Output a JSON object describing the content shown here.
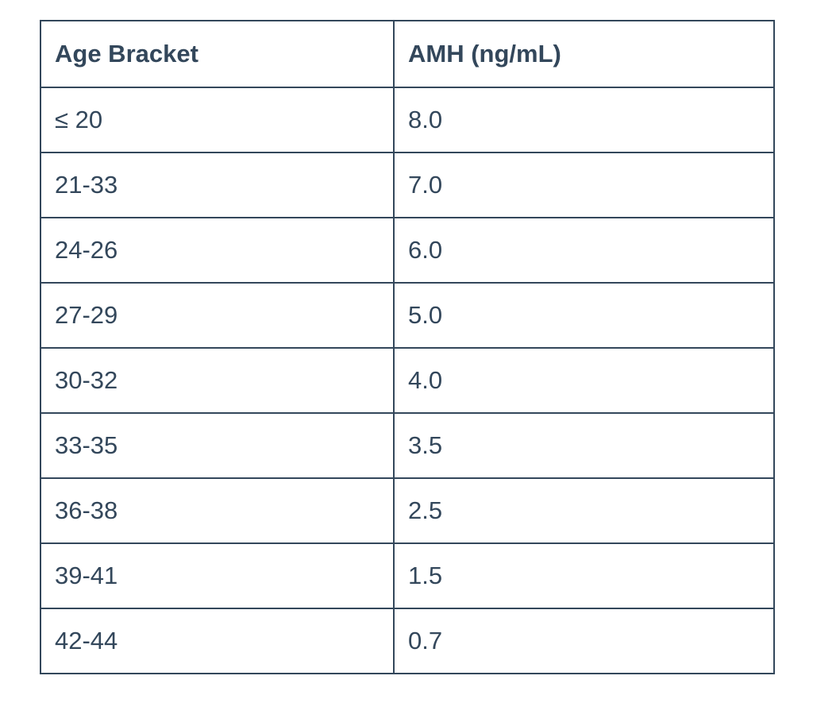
{
  "table": {
    "headers": [
      "Age Bracket",
      "AMH (ng/mL)"
    ],
    "rows": [
      [
        "≤ 20",
        "8.0"
      ],
      [
        "21-33",
        "7.0"
      ],
      [
        "24-26",
        "6.0"
      ],
      [
        "27-29",
        "5.0"
      ],
      [
        "30-32",
        "4.0"
      ],
      [
        "33-35",
        "3.5"
      ],
      [
        "36-38",
        "2.5"
      ],
      [
        "39-41",
        "1.5"
      ],
      [
        "42-44",
        "0.7"
      ]
    ]
  },
  "colors": {
    "text": "#33475b",
    "border": "#33475b",
    "background": "#ffffff"
  }
}
